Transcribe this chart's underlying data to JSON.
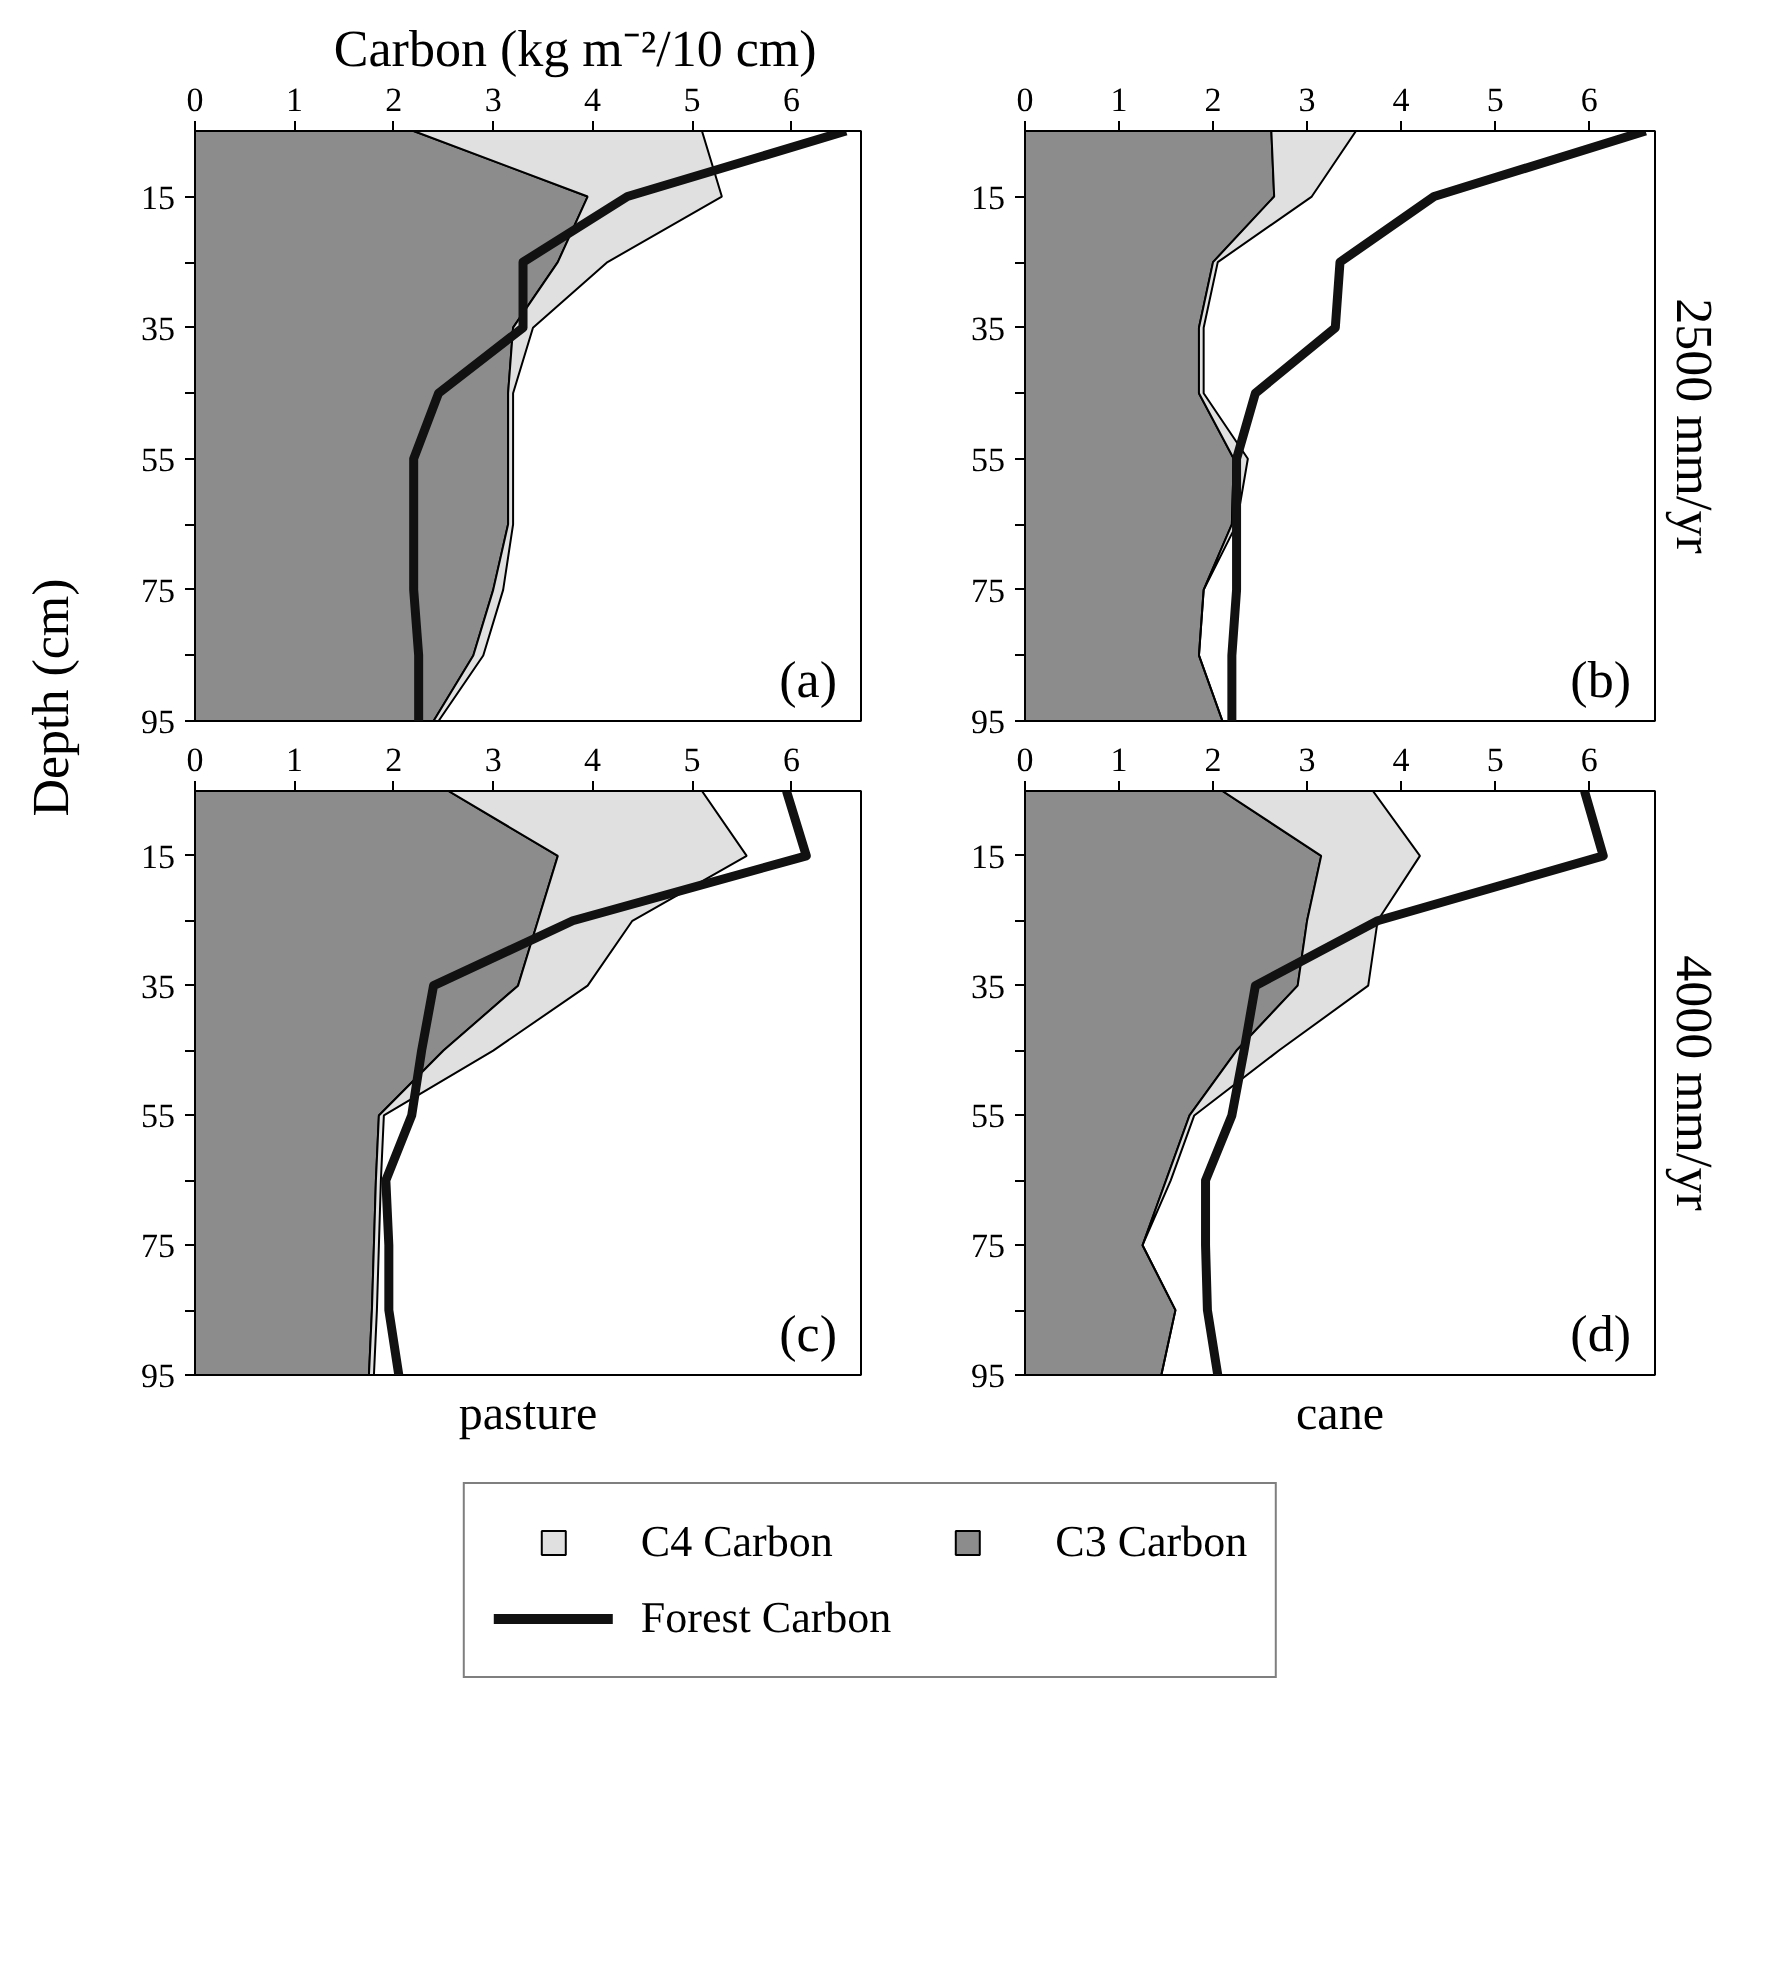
{
  "chart_data": [
    {
      "type": "area",
      "stacked": true,
      "orientation": "horizontal",
      "xlabel": "Carbon (kg m⁻²/10 cm)",
      "ylabel": "Depth (cm)",
      "legend": "bottom",
      "x": [
        5,
        15,
        25,
        35,
        45,
        55,
        65,
        75,
        85,
        95
      ],
      "xlim": [
        0,
        6.7
      ],
      "xticks": [
        0,
        1,
        2,
        3,
        4,
        5,
        6
      ],
      "ylim": [
        95,
        5
      ],
      "yticks": [
        15,
        {
          "value": 25,
          "label": null
        },
        35,
        {
          "value": 45,
          "label": null
        },
        55,
        {
          "value": 65,
          "label": null
        },
        75,
        {
          "value": 85,
          "label": null
        },
        95
      ],
      "annotations": [
        "(a)"
      ],
      "series": [
        {
          "name": "C3 Carbon",
          "color": "#8c8c8c",
          "values": [
            2.2,
            3.95,
            3.65,
            3.2,
            3.15,
            3.15,
            3.15,
            3.0,
            2.8,
            2.4
          ]
        },
        {
          "name": "C4 Carbon",
          "color": "#e0e0e0",
          "values": [
            2.9,
            1.35,
            0.5,
            0.2,
            0.05,
            0.05,
            0.05,
            0.1,
            0.1,
            0.05
          ]
        },
        {
          "name": "Forest Carbon",
          "type": "line",
          "color": "#111111",
          "values": [
            6.55,
            4.35,
            3.3,
            3.3,
            2.45,
            2.2,
            2.2,
            2.2,
            2.25,
            2.25
          ]
        }
      ]
    },
    {
      "type": "area",
      "stacked": true,
      "orientation": "horizontal",
      "y2label": "2500 mm/yr",
      "x": [
        5,
        15,
        25,
        35,
        45,
        55,
        65,
        75,
        85,
        95
      ],
      "xlim": [
        0,
        6.7
      ],
      "xticks": [
        0,
        1,
        2,
        3,
        4,
        5,
        6
      ],
      "ylim": [
        95,
        5
      ],
      "yticks": [
        15,
        {
          "value": 25,
          "label": null
        },
        35,
        {
          "value": 45,
          "label": null
        },
        55,
        {
          "value": 65,
          "label": null
        },
        75,
        {
          "value": 85,
          "label": null
        },
        95
      ],
      "annotations": [
        "(b)"
      ],
      "series": [
        {
          "color": "#8c8c8c",
          "values": [
            2.62,
            2.65,
            2.0,
            1.85,
            1.85,
            2.22,
            2.2,
            1.9,
            1.85,
            2.1
          ]
        },
        {
          "color": "#e0e0e0",
          "values": [
            0.9,
            0.4,
            0.05,
            0.05,
            0.05,
            0.15,
            0.05,
            0.0,
            0.0,
            0.0
          ]
        },
        {
          "type": "line",
          "color": "#111111",
          "values": [
            6.6,
            4.35,
            3.35,
            3.3,
            2.45,
            2.25,
            2.25,
            2.25,
            2.2,
            2.2
          ]
        }
      ]
    },
    {
      "type": "area",
      "stacked": true,
      "orientation": "horizontal",
      "xlabel": "pasture",
      "x": [
        5,
        15,
        25,
        35,
        45,
        55,
        65,
        75,
        85,
        95
      ],
      "xlim": [
        0,
        6.7
      ],
      "xticks": [
        0,
        1,
        2,
        3,
        4,
        5,
        6
      ],
      "ylim": [
        95,
        5
      ],
      "yticks": [
        15,
        {
          "value": 25,
          "label": null
        },
        35,
        {
          "value": 45,
          "label": null
        },
        55,
        {
          "value": 65,
          "label": null
        },
        75,
        {
          "value": 85,
          "label": null
        },
        95
      ],
      "annotations": [
        "(c)"
      ],
      "series": [
        {
          "color": "#8c8c8c",
          "values": [
            2.55,
            3.65,
            3.45,
            3.25,
            2.5,
            1.85,
            1.82,
            1.8,
            1.78,
            1.75
          ]
        },
        {
          "color": "#e0e0e0",
          "values": [
            2.55,
            1.9,
            0.95,
            0.7,
            0.5,
            0.05,
            0.05,
            0.05,
            0.05,
            0.05
          ]
        },
        {
          "type": "line",
          "color": "#111111",
          "values": [
            5.95,
            6.15,
            3.8,
            2.4,
            2.28,
            2.18,
            1.92,
            1.95,
            1.95,
            2.05
          ]
        }
      ]
    },
    {
      "type": "area",
      "stacked": true,
      "orientation": "horizontal",
      "xlabel": "cane",
      "y2label": "4000 mm/yr",
      "x": [
        5,
        15,
        25,
        35,
        45,
        55,
        65,
        75,
        85,
        95
      ],
      "xlim": [
        0,
        6.7
      ],
      "xticks": [
        0,
        1,
        2,
        3,
        4,
        5,
        6
      ],
      "ylim": [
        95,
        5
      ],
      "yticks": [
        15,
        {
          "value": 25,
          "label": null
        },
        35,
        {
          "value": 45,
          "label": null
        },
        55,
        {
          "value": 65,
          "label": null
        },
        75,
        {
          "value": 85,
          "label": null
        },
        95
      ],
      "annotations": [
        "(d)"
      ],
      "series": [
        {
          "color": "#8c8c8c",
          "values": [
            2.1,
            3.15,
            3.0,
            2.9,
            2.25,
            1.75,
            1.5,
            1.25,
            1.6,
            1.45
          ]
        },
        {
          "color": "#e0e0e0",
          "values": [
            1.6,
            1.05,
            0.75,
            0.75,
            0.45,
            0.05,
            0.05,
            0.0,
            0.0,
            0.0
          ]
        },
        {
          "type": "line",
          "color": "#111111",
          "values": [
            5.95,
            6.15,
            3.75,
            2.45,
            2.33,
            2.2,
            1.92,
            1.92,
            1.94,
            2.05
          ]
        }
      ]
    }
  ]
}
